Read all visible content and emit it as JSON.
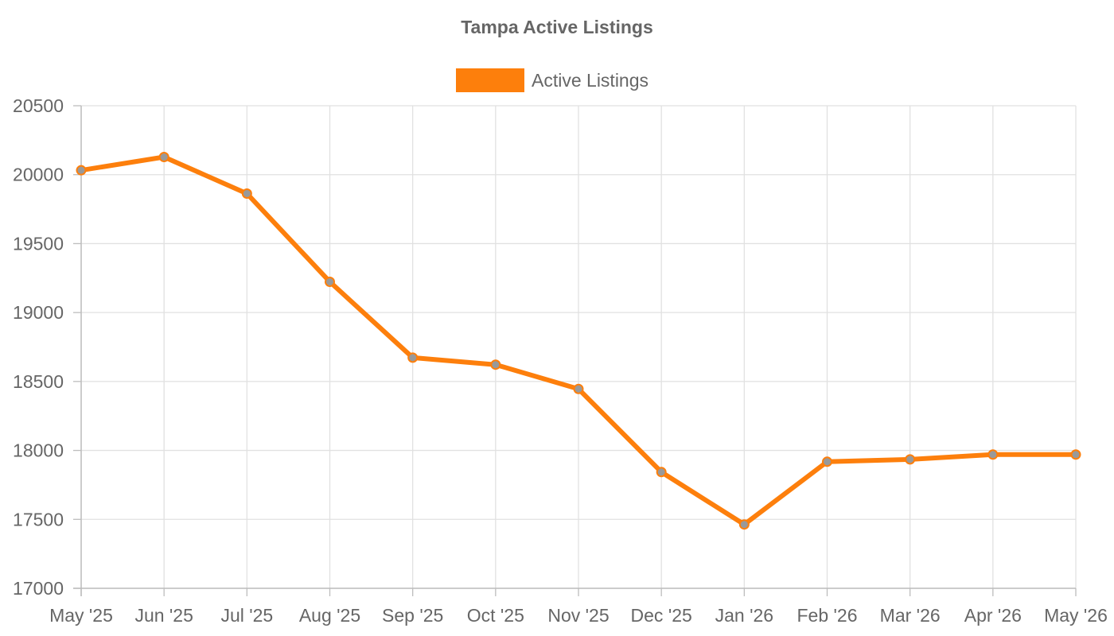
{
  "chart_data": {
    "type": "line",
    "title": "Tampa Active Listings",
    "xlabel": "",
    "ylabel": "",
    "categories": [
      "May '25",
      "Jun '25",
      "Jul '25",
      "Aug '25",
      "Sep '25",
      "Oct '25",
      "Nov '25",
      "Dec '25",
      "Jan '26",
      "Feb '26",
      "Mar '26",
      "Apr '26",
      "May '26"
    ],
    "series": [
      {
        "name": "Active Listings",
        "color": "#fd7f0c",
        "point_fill": "#999999",
        "values": [
          20032,
          20128,
          19863,
          19223,
          18673,
          18622,
          18446,
          17843,
          17463,
          17918,
          17935,
          17970,
          17970
        ]
      }
    ],
    "ylim": [
      17000,
      20500
    ],
    "yticks": [
      17000,
      17500,
      18000,
      18500,
      19000,
      19500,
      20000,
      20500
    ],
    "grid": true,
    "legend": "top-center"
  }
}
